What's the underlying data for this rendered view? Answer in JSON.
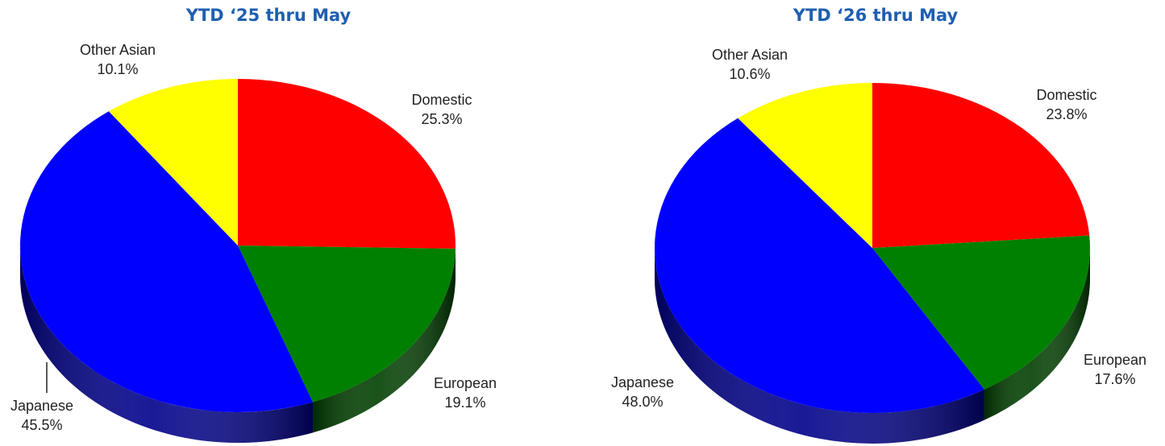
{
  "title_color": "#1f5fb0",
  "chart_data": [
    {
      "type": "pie",
      "title": "YTD ‘25 thru May",
      "slices": [
        {
          "label": "Domestic",
          "value": 25.3,
          "value_label": "25.3%",
          "color": "#ff0000",
          "side_color": "#8a0000"
        },
        {
          "label": "European",
          "value": 19.1,
          "value_label": "19.1%",
          "color": "#008000",
          "side_color": "#003f00"
        },
        {
          "label": "Japanese",
          "value": 45.5,
          "value_label": "45.5%",
          "color": "#0000ff",
          "side_color": "#00008a"
        },
        {
          "label": "Other Asian",
          "value": 10.1,
          "value_label": "10.1%",
          "color": "#ffff00",
          "side_color": "#8a8a00"
        }
      ]
    },
    {
      "type": "pie",
      "title": "YTD ‘26 thru May",
      "slices": [
        {
          "label": "Domestic",
          "value": 23.8,
          "value_label": "23.8%",
          "color": "#ff0000",
          "side_color": "#8a0000"
        },
        {
          "label": "European",
          "value": 17.6,
          "value_label": "17.6%",
          "color": "#008000",
          "side_color": "#003f00"
        },
        {
          "label": "Japanese",
          "value": 48.0,
          "value_label": "48.0%",
          "color": "#0000ff",
          "side_color": "#00008a"
        },
        {
          "label": "Other Asian",
          "value": 10.6,
          "value_label": "10.6%",
          "color": "#ffff00",
          "side_color": "#8a8a00"
        }
      ]
    }
  ]
}
